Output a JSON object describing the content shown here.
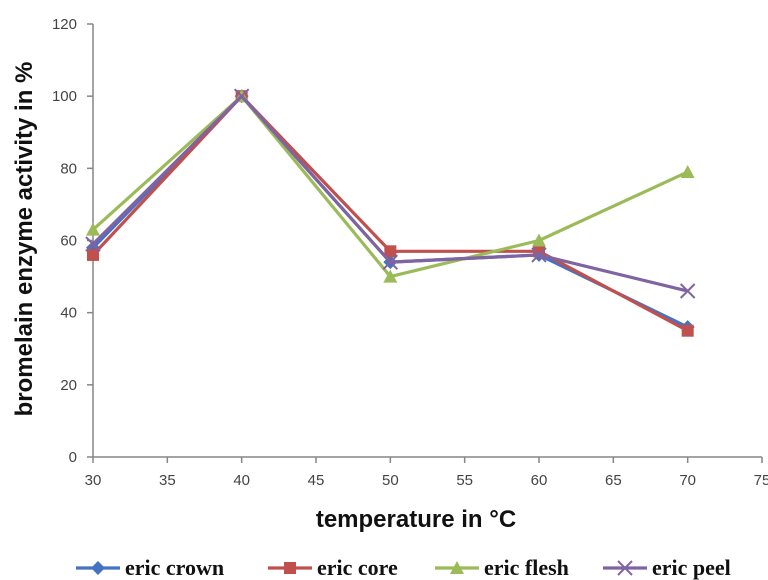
{
  "chart_data": {
    "type": "line",
    "title": "",
    "xlabel": "temperature in °C",
    "ylabel": "bromelain enzyme activity in %",
    "xlim": [
      30,
      75
    ],
    "ylim": [
      0,
      120
    ],
    "x_ticks": [
      "30",
      "35",
      "40",
      "45",
      "50",
      "55",
      "60",
      "65",
      "70",
      "75"
    ],
    "y_ticks": [
      "0",
      "20",
      "40",
      "60",
      "80",
      "100",
      "120"
    ],
    "grid": false,
    "legend_position": "bottom",
    "x": [
      30,
      40,
      50,
      60,
      70
    ],
    "series": [
      {
        "name": "eric crown",
        "values": [
          58,
          100,
          54,
          56,
          36
        ],
        "color": "#4472C4",
        "marker": "diamond"
      },
      {
        "name": "eric core",
        "values": [
          56,
          100,
          57,
          57,
          35
        ],
        "color": "#C0504D",
        "marker": "square"
      },
      {
        "name": "eric flesh",
        "values": [
          63,
          100,
          50,
          60,
          79
        ],
        "color": "#9BBB59",
        "marker": "triangle"
      },
      {
        "name": "eric peel",
        "values": [
          59,
          100,
          54,
          56,
          46
        ],
        "color": "#8064A2",
        "marker": "x"
      }
    ]
  }
}
